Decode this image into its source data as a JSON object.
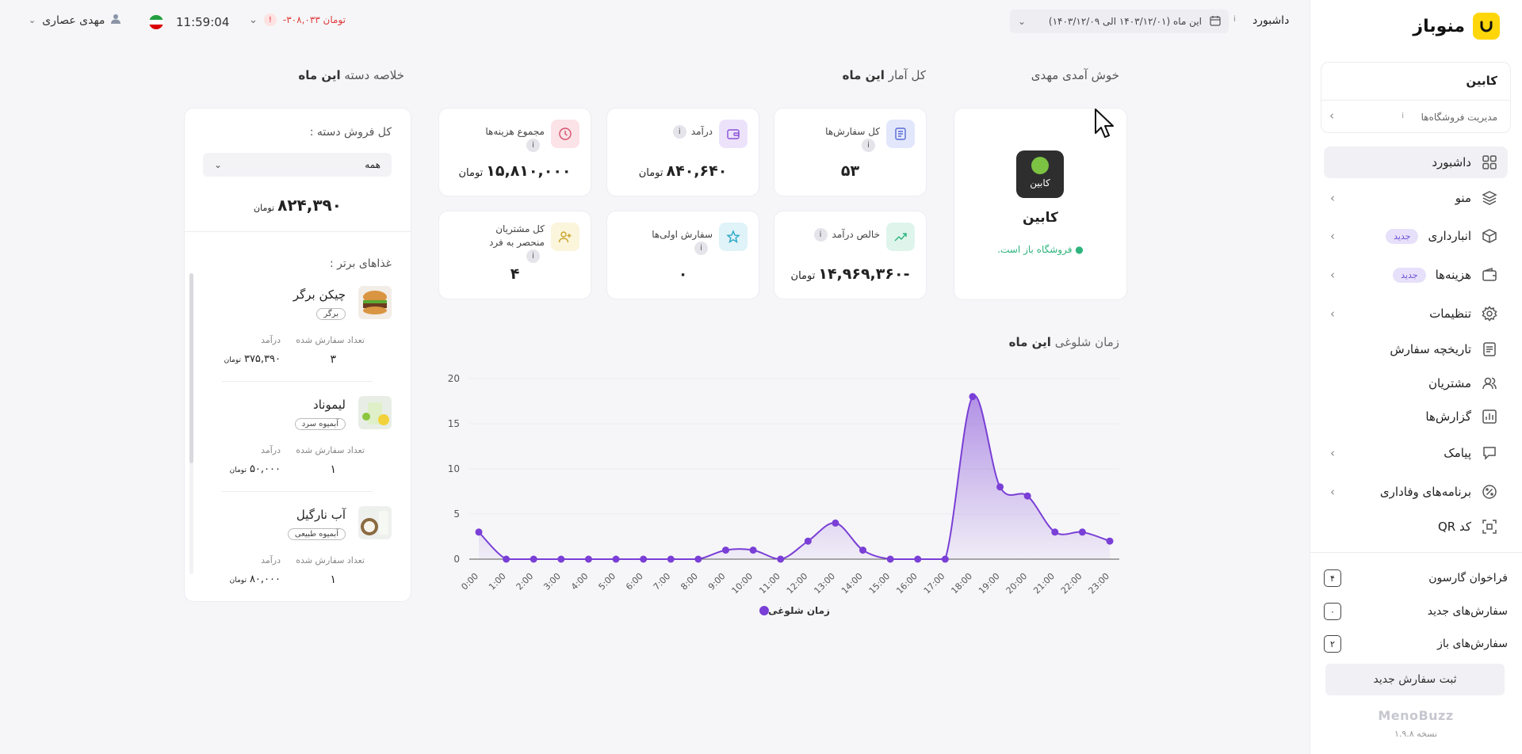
{
  "sidebar": {
    "brand": "منوباز",
    "store_name": "کابین",
    "store_manage": "مدیریت فروشگاه‌ها",
    "store_manage_info": "i",
    "chevron_glyph": "›",
    "items": [
      {
        "label": "داشبورد",
        "icon": "dashboard-icon"
      },
      {
        "label": "منو",
        "icon": "layers-icon"
      },
      {
        "label": "انبارداری",
        "icon": "box-icon",
        "badge": "جدید"
      },
      {
        "label": "هزینه‌ها",
        "icon": "wallet-icon",
        "badge": "جدید"
      },
      {
        "label": "تنظیمات",
        "icon": "gear-icon"
      },
      {
        "label": "تاریخچه سفارش",
        "icon": "receipt-icon"
      },
      {
        "label": "مشتریان",
        "icon": "users-icon"
      },
      {
        "label": "گزارش‌ها",
        "icon": "report-icon"
      },
      {
        "label": "پیامک",
        "icon": "sms-icon"
      },
      {
        "label": "برنامه‌های وفاداری",
        "icon": "percent-icon"
      },
      {
        "label": "کد QR",
        "icon": "qr-icon"
      }
    ],
    "counts": [
      {
        "label": "فراخوان گارسون",
        "value": "۴"
      },
      {
        "label": "سفارش‌های جدید",
        "value": "۰"
      },
      {
        "label": "سفارش‌های باز",
        "value": "۲"
      }
    ],
    "new_order_button": "ثبت سفارش جدید",
    "footer_logo": "MenoBuzz",
    "footer_version": "نسخه ۱.۹.۸"
  },
  "topbar": {
    "user_name": "مهدی عصاری",
    "time": "11:59:04",
    "balance": "-۳۰۸,۰۳۳ تومان",
    "alert": "!",
    "date_range": "این ماه (۱۴۰۳/۱۲/۰۱ الی ۱۴۰۳/۱۲/۰۹)",
    "info": "i",
    "breadcrumb": "داشبورد"
  },
  "headings": {
    "welcome": "خوش آمدی مهدی",
    "stats_prefix": "کل آمار",
    "stats_period": "این ماه",
    "summary_prefix": "خلاصه دسته",
    "summary_period": "این ماه"
  },
  "store_card": {
    "logo_text": "کابین",
    "name": "کابین",
    "status": "● فروشگاه باز است."
  },
  "stats": [
    {
      "label": "کل سفارش‌ها",
      "value": "۵۳",
      "unit": "",
      "icon": "document-icon",
      "color": "#e3e7fb",
      "stroke": "#5a6bd6"
    },
    {
      "label": "درآمد",
      "value": "۸۴۰,۶۴۰",
      "unit": "تومان",
      "icon": "wallet-icon",
      "color": "#ece3fb",
      "stroke": "#8a4fd6"
    },
    {
      "label": "مجموع هزینه‌ها",
      "value": "۱۵,۸۱۰,۰۰۰",
      "unit": "تومان",
      "icon": "clock-icon",
      "color": "#fbe3e7",
      "stroke": "#d64f6b"
    },
    {
      "label": "خالص درآمد",
      "value": "-۱۴,۹۶۹,۳۶۰",
      "unit": "تومان",
      "icon": "growth-icon",
      "color": "#dff5ec",
      "stroke": "#2db47c"
    },
    {
      "label": "سفارش اولی‌ها",
      "value": "۰",
      "unit": "",
      "icon": "star-icon",
      "color": "#dff3f8",
      "stroke": "#2aa7c6"
    },
    {
      "label": "کل مشتریان منحصر به فرد",
      "value": "۴",
      "unit": "",
      "icon": "user-add-icon",
      "color": "#fbf5dc",
      "stroke": "#c9a52a"
    }
  ],
  "chart_title_prefix": "زمان شلوغی",
  "chart_title_period": "این ماه",
  "chart_data": {
    "type": "area",
    "x": [
      "0:00",
      "1:00",
      "2:00",
      "3:00",
      "4:00",
      "5:00",
      "6:00",
      "7:00",
      "8:00",
      "9:00",
      "10:00",
      "11:00",
      "12:00",
      "13:00",
      "14:00",
      "15:00",
      "16:00",
      "17:00",
      "18:00",
      "19:00",
      "20:00",
      "21:00",
      "22:00",
      "23:00"
    ],
    "series": [
      {
        "name": "زمان شلوغی",
        "values": [
          3,
          0,
          0,
          0,
          0,
          0,
          0,
          0,
          0,
          1,
          1,
          0,
          2,
          4,
          1,
          0,
          0,
          0,
          18,
          8,
          7,
          3,
          3,
          2
        ]
      }
    ],
    "yticks": [
      "0",
      "5",
      "10",
      "15",
      "20"
    ],
    "ylim": [
      0,
      20
    ],
    "grid": true,
    "legend": "bottom",
    "color": "#7a3fd6"
  },
  "summary": {
    "total_label": "کل فروش دسته :",
    "select_value": "همه",
    "total_value": "۸۲۴,۳۹۰",
    "total_unit": "تومان",
    "top_foods_label": "غذاهای برتر :",
    "foods": [
      {
        "name": "چیکن برگر",
        "tag": "برگر",
        "count_label": "تعداد سفارش شده",
        "revenue_label": "درآمد",
        "count": "۳",
        "revenue": "۳۷۵,۳۹۰",
        "unit": "تومان"
      },
      {
        "name": "لیموناد",
        "tag": "آبمیوه سرد",
        "count_label": "تعداد سفارش شده",
        "revenue_label": "درآمد",
        "count": "۱",
        "revenue": "۵۰,۰۰۰",
        "unit": "تومان"
      },
      {
        "name": "آب نارگیل",
        "tag": "آبمیوه طبیعی",
        "count_label": "تعداد سفارش شده",
        "revenue_label": "درآمد",
        "count": "۱",
        "revenue": "۸۰,۰۰۰",
        "unit": "تومان"
      }
    ]
  }
}
